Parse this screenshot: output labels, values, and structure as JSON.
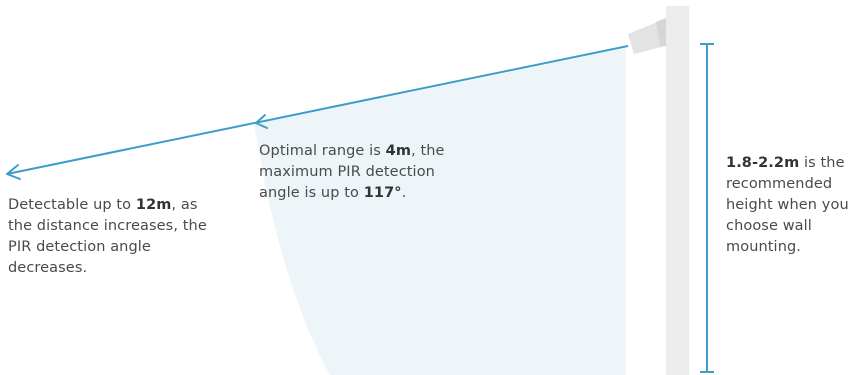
{
  "annotations": {
    "far_range": {
      "prefix": "Detectable up to ",
      "highlight": "12m",
      "suffix": ", as the distance increases, the PIR detection angle decreases."
    },
    "optimal_range": {
      "prefix": "Optimal range is ",
      "highlight": "4m",
      "middle": ", the maximum PIR detection angle is up to ",
      "highlight2": "117°",
      "suffix": "."
    },
    "mount_height": {
      "highlight": "1.8-2.2m",
      "suffix": " is the recommended height when you choose wall mounting."
    }
  },
  "colors": {
    "beam": "#3d9dc9",
    "cone": "#eef5f9",
    "wall": "#ececec",
    "text": "#4a4a4a",
    "sensor": "#e2e2e2"
  }
}
